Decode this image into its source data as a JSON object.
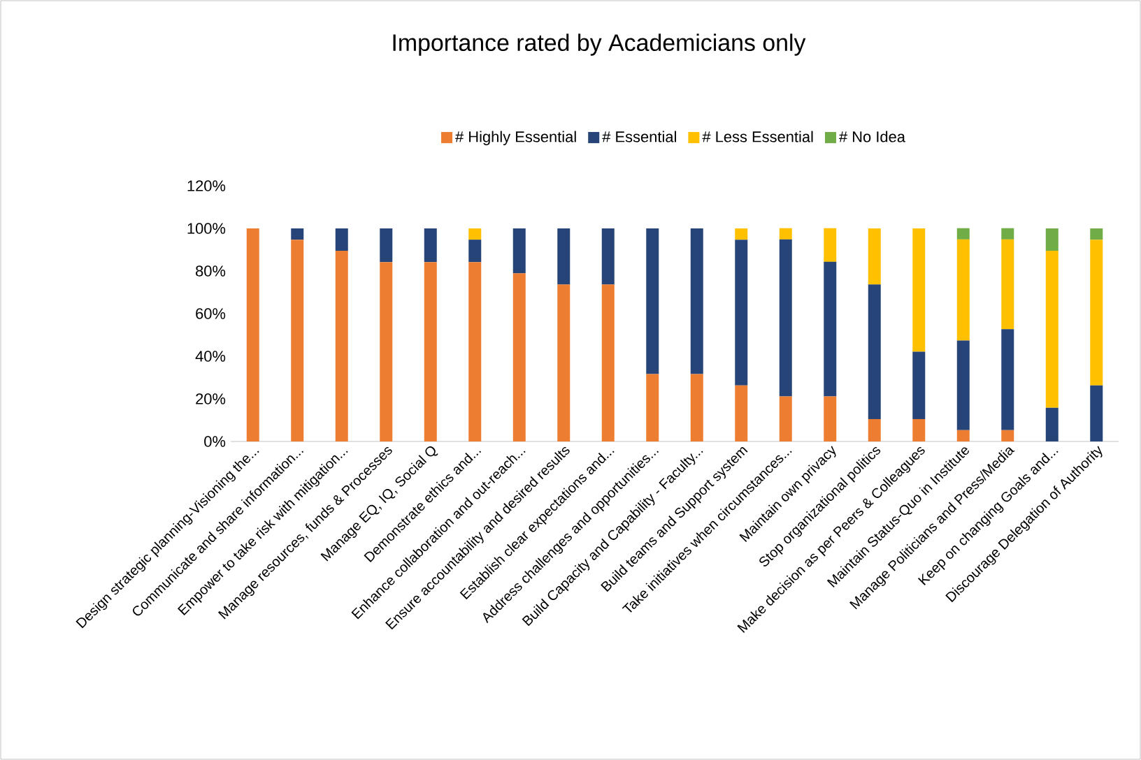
{
  "chart_data": {
    "type": "bar",
    "stacked": true,
    "title": "Importance rated by Academicians only",
    "categories": [
      "Design strategic planning-Visioning the...",
      "Communicate and share information...",
      "Empower to take risk  with mitigation...",
      "Manage resources, funds  & Processes",
      "Manage  EQ, IQ, Social Q",
      "Demonstrate ethics and...",
      "Enhance collaboration and out-reach...",
      "Ensure accountability and desired results",
      "Establish clear expectations and...",
      "Address challenges and opportunities...",
      "Build Capacity and Capability - Faculty...",
      "Build teams and Support system",
      "Take initiatives when circumstances...",
      "Maintain own privacy",
      "Stop organizational politics",
      "Make decision as per Peers & Colleagues",
      "Maintain Status-Quo in Institute",
      "Manage Politicians and Press/Media",
      "Keep on changing Goals and...",
      "Discourage Delegation of Authority"
    ],
    "series": [
      {
        "name": "# Highly Essential",
        "color": "#ed7d31",
        "values": [
          100,
          94.7,
          89.5,
          84.2,
          84.2,
          84.2,
          78.9,
          73.7,
          73.7,
          31.6,
          31.6,
          26.3,
          21.1,
          21.1,
          10.5,
          10.5,
          5.3,
          5.3,
          0,
          0
        ]
      },
      {
        "name": "# Essential",
        "color": "#264478",
        "values": [
          0,
          5.3,
          10.5,
          15.8,
          15.8,
          10.5,
          21.1,
          26.3,
          26.3,
          68.4,
          68.4,
          68.4,
          73.7,
          63.2,
          63.2,
          31.6,
          42.1,
          47.4,
          15.8,
          26.3
        ]
      },
      {
        "name": "# Less Essential",
        "color": "#ffc000",
        "values": [
          0,
          0,
          0,
          0,
          0,
          5.3,
          0,
          0,
          0,
          0,
          0,
          5.3,
          5.3,
          15.8,
          26.3,
          57.9,
          47.4,
          42.1,
          73.7,
          68.4
        ]
      },
      {
        "name": "# No Idea",
        "color": "#70ad47",
        "values": [
          0,
          0,
          0,
          0,
          0,
          0,
          0,
          0,
          0,
          0,
          0,
          0,
          0,
          0,
          0,
          0,
          5.3,
          5.3,
          10.5,
          5.3
        ]
      }
    ],
    "ylim": [
      0,
      120
    ],
    "yticks": [
      {
        "value": 0,
        "label": "0%"
      },
      {
        "value": 20,
        "label": "20%"
      },
      {
        "value": 40,
        "label": "40%"
      },
      {
        "value": 60,
        "label": "60%"
      },
      {
        "value": 80,
        "label": "80%"
      },
      {
        "value": 100,
        "label": "100%"
      },
      {
        "value": 120,
        "label": "120%"
      }
    ],
    "legend": "top"
  }
}
